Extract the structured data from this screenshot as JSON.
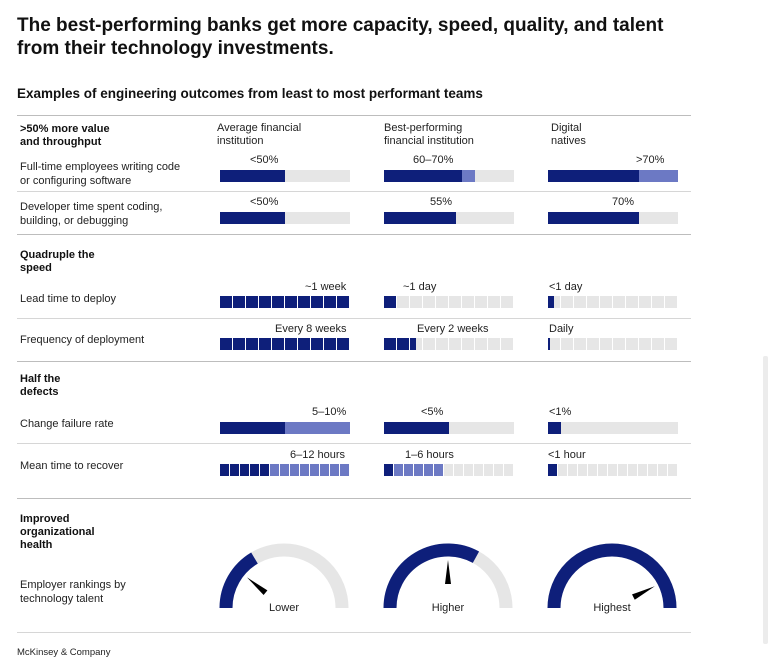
{
  "title": "The best-performing banks get more capacity, speed, quality, and talent from their technology investments.",
  "subtitle": "Examples of engineering outcomes from least to most performant teams",
  "columns": [
    "Average financial institution",
    "Best-performing financial institution",
    "Digital natives"
  ],
  "sections": [
    {
      "title": ">50% more value and throughput"
    },
    {
      "title": "Quadruple the speed"
    },
    {
      "title": "Half the defects"
    },
    {
      "title": "Improved organizational health"
    }
  ],
  "rows": [
    {
      "label": "Full-time employees writing code or configuring software",
      "values": [
        "<50%",
        "60–70%",
        ">70%"
      ]
    },
    {
      "label": "Developer time spent coding, building, or debugging",
      "values": [
        "<50%",
        "55%",
        "70%"
      ]
    },
    {
      "label": "Lead time to deploy",
      "values": [
        "~1 week",
        "~1 day",
        "<1 day"
      ]
    },
    {
      "label": "Frequency of deployment",
      "values": [
        "Every 8 weeks",
        "Every 2 weeks",
        "Daily"
      ]
    },
    {
      "label": "Change failure rate",
      "values": [
        "5–10%",
        "<5%",
        "<1%"
      ]
    },
    {
      "label": "Mean time to recover",
      "values": [
        "6–12 hours",
        "1–6 hours",
        "<1 hour"
      ]
    },
    {
      "label": "Employer rankings by technology talent",
      "values": [
        "Lower",
        "Higher",
        "Highest"
      ]
    }
  ],
  "footer": "McKinsey & Company",
  "colors": {
    "dark": "#0e1f7a",
    "light": "#6c79c4",
    "track": "#e6e6e6",
    "grid": "#d6d6d6"
  },
  "chart_data": {
    "type": "table",
    "bars": [
      {
        "row": 0,
        "ranges": [
          [
            0,
            0.5
          ],
          [
            0.6,
            0.7
          ],
          [
            0.7,
            1.0
          ]
        ]
      },
      {
        "row": 1,
        "ranges": [
          [
            0,
            0.5
          ],
          [
            0,
            0.55
          ],
          [
            0,
            0.7
          ]
        ]
      }
    ],
    "segments": [
      {
        "row": 2,
        "total": 10,
        "dark": [
          10,
          1,
          0.5
        ],
        "light": [
          0,
          0,
          0
        ]
      },
      {
        "row": 3,
        "total": 10,
        "dark": [
          10,
          2.5,
          0.2
        ],
        "light": [
          0,
          0,
          0
        ]
      },
      {
        "row": 5,
        "total": 10,
        "dark": [
          5,
          1,
          1
        ],
        "light": [
          5,
          5,
          0
        ]
      }
    ],
    "failure": [
      {
        "row": 4,
        "dark": [
          0.5,
          0.5,
          0.1
        ],
        "light": [
          0.5,
          0,
          0
        ]
      }
    ],
    "gauges": [
      {
        "label": "Lower",
        "level": 0.22
      },
      {
        "label": "Higher",
        "level": 0.5
      },
      {
        "label": "Highest",
        "level": 0.85
      }
    ]
  }
}
